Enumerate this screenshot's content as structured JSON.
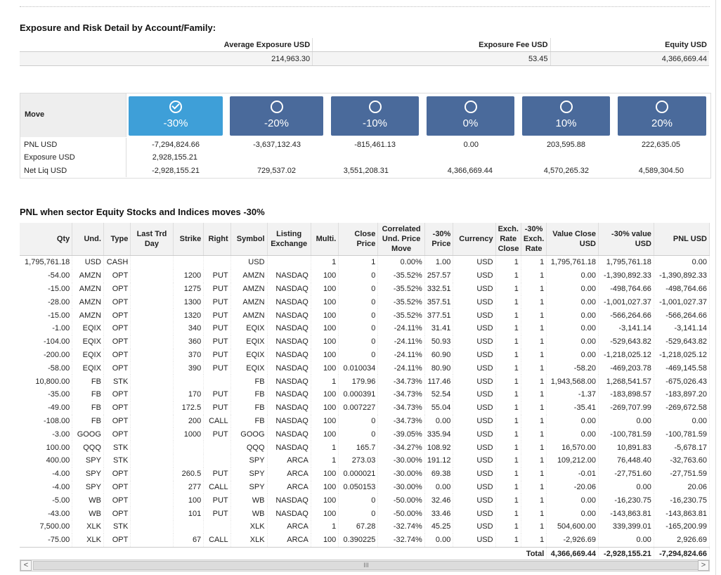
{
  "exposure": {
    "title": "Exposure and Risk Detail by Account/Family:",
    "headers": [
      "Average Exposure USD",
      "Exposure Fee USD",
      "Equity USD"
    ],
    "values": [
      "214,963.30",
      "53.45",
      "4,366,669.44"
    ]
  },
  "move": {
    "label": "Move",
    "buttons": [
      {
        "pct": "-30%",
        "selected": true
      },
      {
        "pct": "-20%",
        "selected": false
      },
      {
        "pct": "-10%",
        "selected": false
      },
      {
        "pct": "0%",
        "selected": false
      },
      {
        "pct": "10%",
        "selected": false
      },
      {
        "pct": "20%",
        "selected": false
      }
    ],
    "rows": [
      {
        "label": "PNL USD",
        "values": [
          "-7,294,824.66",
          "-3,637,132.43",
          "-815,461.13",
          "0.00",
          "203,595.88",
          "222,635.05"
        ]
      },
      {
        "label": "Exposure USD",
        "values": [
          "2,928,155.21",
          "",
          "",
          "",
          "",
          ""
        ]
      },
      {
        "label": "Net Liq USD",
        "values": [
          "-2,928,155.21",
          "729,537.02",
          "3,551,208.31",
          "4,366,669.44",
          "4,570,265.32",
          "4,589,304.50"
        ]
      }
    ],
    "colors": {
      "button": "#4a6a9b",
      "selected": "#3e9fd8"
    }
  },
  "pnl": {
    "title": "PNL when sector Equity Stocks and Indices moves -30%",
    "headers": [
      "Qty",
      "Und.",
      "Type",
      "Last Trd Day",
      "Strike",
      "Right",
      "Symbol",
      "Listing Exchange",
      "Multi.",
      "Close Price",
      "Correlated Und. Price Move",
      "-30% Price",
      "Currency",
      "Exch. Rate Close",
      "-30% Exch. Rate",
      "Value Close USD",
      "-30% value USD",
      "PNL USD"
    ],
    "rows": [
      [
        "1,795,761.18",
        "USD",
        "CASH",
        "",
        "",
        "",
        "USD",
        "",
        "1",
        "1",
        "0.00%",
        "1.00",
        "USD",
        "1",
        "1",
        "1,795,761.18",
        "1,795,761.18",
        "0.00"
      ],
      [
        "-54.00",
        "AMZN",
        "OPT",
        "",
        "1200",
        "PUT",
        "AMZN",
        "NASDAQ",
        "100",
        "0",
        "-35.52%",
        "257.57",
        "USD",
        "1",
        "1",
        "0.00",
        "-1,390,892.33",
        "-1,390,892.33"
      ],
      [
        "-15.00",
        "AMZN",
        "OPT",
        "",
        "1275",
        "PUT",
        "AMZN",
        "NASDAQ",
        "100",
        "0",
        "-35.52%",
        "332.51",
        "USD",
        "1",
        "1",
        "0.00",
        "-498,764.66",
        "-498,764.66"
      ],
      [
        "-28.00",
        "AMZN",
        "OPT",
        "",
        "1300",
        "PUT",
        "AMZN",
        "NASDAQ",
        "100",
        "0",
        "-35.52%",
        "357.51",
        "USD",
        "1",
        "1",
        "0.00",
        "-1,001,027.37",
        "-1,001,027.37"
      ],
      [
        "-15.00",
        "AMZN",
        "OPT",
        "",
        "1320",
        "PUT",
        "AMZN",
        "NASDAQ",
        "100",
        "0",
        "-35.52%",
        "377.51",
        "USD",
        "1",
        "1",
        "0.00",
        "-566,264.66",
        "-566,264.66"
      ],
      [
        "-1.00",
        "EQIX",
        "OPT",
        "",
        "340",
        "PUT",
        "EQIX",
        "NASDAQ",
        "100",
        "0",
        "-24.11%",
        "31.41",
        "USD",
        "1",
        "1",
        "0.00",
        "-3,141.14",
        "-3,141.14"
      ],
      [
        "-104.00",
        "EQIX",
        "OPT",
        "",
        "360",
        "PUT",
        "EQIX",
        "NASDAQ",
        "100",
        "0",
        "-24.11%",
        "50.93",
        "USD",
        "1",
        "1",
        "0.00",
        "-529,643.82",
        "-529,643.82"
      ],
      [
        "-200.00",
        "EQIX",
        "OPT",
        "",
        "370",
        "PUT",
        "EQIX",
        "NASDAQ",
        "100",
        "0",
        "-24.11%",
        "60.90",
        "USD",
        "1",
        "1",
        "0.00",
        "-1,218,025.12",
        "-1,218,025.12"
      ],
      [
        "-58.00",
        "EQIX",
        "OPT",
        "",
        "390",
        "PUT",
        "EQIX",
        "NASDAQ",
        "100",
        "0.010034",
        "-24.11%",
        "80.90",
        "USD",
        "1",
        "1",
        "-58.20",
        "-469,203.78",
        "-469,145.58"
      ],
      [
        "10,800.00",
        "FB",
        "STK",
        "",
        "",
        "",
        "FB",
        "NASDAQ",
        "1",
        "179.96",
        "-34.73%",
        "117.46",
        "USD",
        "1",
        "1",
        "1,943,568.00",
        "1,268,541.57",
        "-675,026.43"
      ],
      [
        "-35.00",
        "FB",
        "OPT",
        "",
        "170",
        "PUT",
        "FB",
        "NASDAQ",
        "100",
        "0.000391",
        "-34.73%",
        "52.54",
        "USD",
        "1",
        "1",
        "-1.37",
        "-183,898.57",
        "-183,897.20"
      ],
      [
        "-49.00",
        "FB",
        "OPT",
        "",
        "172.5",
        "PUT",
        "FB",
        "NASDAQ",
        "100",
        "0.007227",
        "-34.73%",
        "55.04",
        "USD",
        "1",
        "1",
        "-35.41",
        "-269,707.99",
        "-269,672.58"
      ],
      [
        "-108.00",
        "FB",
        "OPT",
        "",
        "200",
        "CALL",
        "FB",
        "NASDAQ",
        "100",
        "0",
        "-34.73%",
        "0.00",
        "USD",
        "1",
        "1",
        "0.00",
        "0.00",
        "0.00"
      ],
      [
        "-3.00",
        "GOOG",
        "OPT",
        "",
        "1000",
        "PUT",
        "GOOG",
        "NASDAQ",
        "100",
        "0",
        "-39.05%",
        "335.94",
        "USD",
        "1",
        "1",
        "0.00",
        "-100,781.59",
        "-100,781.59"
      ],
      [
        "100.00",
        "QQQ",
        "STK",
        "",
        "",
        "",
        "QQQ",
        "NASDAQ",
        "1",
        "165.7",
        "-34.27%",
        "108.92",
        "USD",
        "1",
        "1",
        "16,570.00",
        "10,891.83",
        "-5,678.17"
      ],
      [
        "400.00",
        "SPY",
        "STK",
        "",
        "",
        "",
        "SPY",
        "ARCA",
        "1",
        "273.03",
        "-30.00%",
        "191.12",
        "USD",
        "1",
        "1",
        "109,212.00",
        "76,448.40",
        "-32,763.60"
      ],
      [
        "-4.00",
        "SPY",
        "OPT",
        "",
        "260.5",
        "PUT",
        "SPY",
        "ARCA",
        "100",
        "0.000021",
        "-30.00%",
        "69.38",
        "USD",
        "1",
        "1",
        "-0.01",
        "-27,751.60",
        "-27,751.59"
      ],
      [
        "-4.00",
        "SPY",
        "OPT",
        "",
        "277",
        "CALL",
        "SPY",
        "ARCA",
        "100",
        "0.050153",
        "-30.00%",
        "0.00",
        "USD",
        "1",
        "1",
        "-20.06",
        "0.00",
        "20.06"
      ],
      [
        "-5.00",
        "WB",
        "OPT",
        "",
        "100",
        "PUT",
        "WB",
        "NASDAQ",
        "100",
        "0",
        "-50.00%",
        "32.46",
        "USD",
        "1",
        "1",
        "0.00",
        "-16,230.75",
        "-16,230.75"
      ],
      [
        "-43.00",
        "WB",
        "OPT",
        "",
        "101",
        "PUT",
        "WB",
        "NASDAQ",
        "100",
        "0",
        "-50.00%",
        "33.46",
        "USD",
        "1",
        "1",
        "0.00",
        "-143,863.81",
        "-143,863.81"
      ],
      [
        "7,500.00",
        "XLK",
        "STK",
        "",
        "",
        "",
        "XLK",
        "ARCA",
        "1",
        "67.28",
        "-32.74%",
        "45.25",
        "USD",
        "1",
        "1",
        "504,600.00",
        "339,399.01",
        "-165,200.99"
      ],
      [
        "-75.00",
        "XLK",
        "OPT",
        "",
        "67",
        "CALL",
        "XLK",
        "ARCA",
        "100",
        "0.390225",
        "-32.74%",
        "0.00",
        "USD",
        "1",
        "1",
        "-2,926.69",
        "0.00",
        "2,926.69"
      ]
    ],
    "total": {
      "label": "Total",
      "value_close": "4,366,669.44",
      "value_30": "-2,928,155.21",
      "pnl": "-7,294,824.66"
    }
  },
  "scrollbar": {
    "left": "<",
    "right": ">",
    "grip": "III"
  }
}
